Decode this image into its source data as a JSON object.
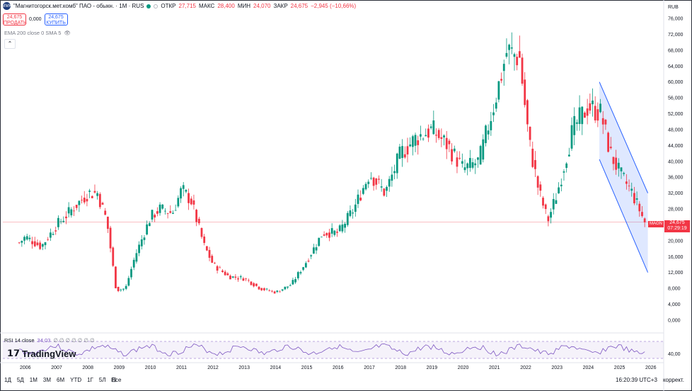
{
  "symbol": {
    "logo": "MMK",
    "name": "\"Магнитогорск.мет.комб\" ПАО - обыкн. · 1M · RUS",
    "open_label": "ОТКР",
    "open": "27,715",
    "high_label": "МАКС",
    "high": "28,400",
    "low_label": "МИН",
    "low": "24,070",
    "close_label": "ЗАКР",
    "close": "24,675",
    "change": "−2,945 (−10,66%)"
  },
  "trade": {
    "sell_price": "24,675",
    "sell_label": "ПРОДАТЬ",
    "spread": "0,000",
    "buy_price": "24,675",
    "buy_label": "КУПИТЬ"
  },
  "indicators": {
    "ema": "EMA 200 close 0 SMA 5",
    "rsi": "RSI 14 close",
    "rsi_value": "34,03",
    "rsi_na": "∅ ∅ ∅ ∅ ∅ ∅ ∅"
  },
  "branding": "TradingView",
  "currency": "RUB",
  "price_tag": {
    "symbol": "MAGN",
    "price": "24,675",
    "countdown": "07:29:19"
  },
  "timeframes": [
    "1Д",
    "5Д",
    "1М",
    "3М",
    "6М",
    "YTD",
    "1Г",
    "5Л",
    "Все"
  ],
  "status": {
    "time": "16:20:39 UTC+3",
    "adjust": "коррект."
  },
  "colors": {
    "up": "#089981",
    "down": "#f23645",
    "channel": "#2962ff",
    "rsi": "#7e57c2"
  },
  "chart_data": {
    "type": "candlestick",
    "y_ticks": [
      "76,000",
      "72,000",
      "68,000",
      "64,000",
      "60,000",
      "56,000",
      "52,000",
      "48,000",
      "44,000",
      "40,000",
      "36,000",
      "32,000",
      "28,000",
      "24,000",
      "20,000",
      "16,000",
      "12,000",
      "8,000",
      "4,000",
      "0,000"
    ],
    "ylim": [
      0,
      76
    ],
    "x_ticks": [
      "2006",
      "2007",
      "2008",
      "2009",
      "2010",
      "2011",
      "2012",
      "2013",
      "2014",
      "2015",
      "2016",
      "2017",
      "2018",
      "2019",
      "2020",
      "2021",
      "2022",
      "2023",
      "2024",
      "2025",
      "2026"
    ],
    "rsi_ticks": [
      "40,00"
    ],
    "series": [
      {
        "t": 2005.8,
        "v": 19.5
      },
      {
        "t": 2006.0,
        "v": 21.0
      },
      {
        "t": 2006.5,
        "v": 18.5
      },
      {
        "t": 2007.0,
        "v": 24.0
      },
      {
        "t": 2007.5,
        "v": 28.0
      },
      {
        "t": 2008.0,
        "v": 32.0
      },
      {
        "t": 2008.3,
        "v": 32.0
      },
      {
        "t": 2008.6,
        "v": 25.0
      },
      {
        "t": 2008.9,
        "v": 7.5
      },
      {
        "t": 2009.2,
        "v": 8.0
      },
      {
        "t": 2009.5,
        "v": 16.0
      },
      {
        "t": 2010.0,
        "v": 26.0
      },
      {
        "t": 2010.3,
        "v": 28.0
      },
      {
        "t": 2010.7,
        "v": 27.0
      },
      {
        "t": 2011.0,
        "v": 33.0
      },
      {
        "t": 2011.3,
        "v": 30.0
      },
      {
        "t": 2011.7,
        "v": 19.0
      },
      {
        "t": 2012.0,
        "v": 14.0
      },
      {
        "t": 2012.5,
        "v": 11.0
      },
      {
        "t": 2013.0,
        "v": 10.5
      },
      {
        "t": 2013.5,
        "v": 8.0
      },
      {
        "t": 2014.0,
        "v": 7.0
      },
      {
        "t": 2014.5,
        "v": 9.0
      },
      {
        "t": 2015.0,
        "v": 15.0
      },
      {
        "t": 2015.5,
        "v": 22.0
      },
      {
        "t": 2016.0,
        "v": 22.0
      },
      {
        "t": 2016.5,
        "v": 28.0
      },
      {
        "t": 2017.0,
        "v": 37.0
      },
      {
        "t": 2017.5,
        "v": 32.0
      },
      {
        "t": 2018.0,
        "v": 42.0
      },
      {
        "t": 2018.5,
        "v": 46.0
      },
      {
        "t": 2019.0,
        "v": 48.0
      },
      {
        "t": 2019.5,
        "v": 44.0
      },
      {
        "t": 2020.0,
        "v": 38.0
      },
      {
        "t": 2020.5,
        "v": 40.0
      },
      {
        "t": 2021.0,
        "v": 55.0
      },
      {
        "t": 2021.4,
        "v": 68.0
      },
      {
        "t": 2021.8,
        "v": 66.0
      },
      {
        "t": 2022.1,
        "v": 45.0
      },
      {
        "t": 2022.4,
        "v": 33.0
      },
      {
        "t": 2022.7,
        "v": 25.0
      },
      {
        "t": 2023.0,
        "v": 32.0
      },
      {
        "t": 2023.5,
        "v": 48.0
      },
      {
        "t": 2024.0,
        "v": 54.0
      },
      {
        "t": 2024.4,
        "v": 52.0
      },
      {
        "t": 2024.7,
        "v": 42.0
      },
      {
        "t": 2025.0,
        "v": 37.0
      },
      {
        "t": 2025.4,
        "v": 32.0
      },
      {
        "t": 2025.8,
        "v": 24.7
      }
    ]
  }
}
